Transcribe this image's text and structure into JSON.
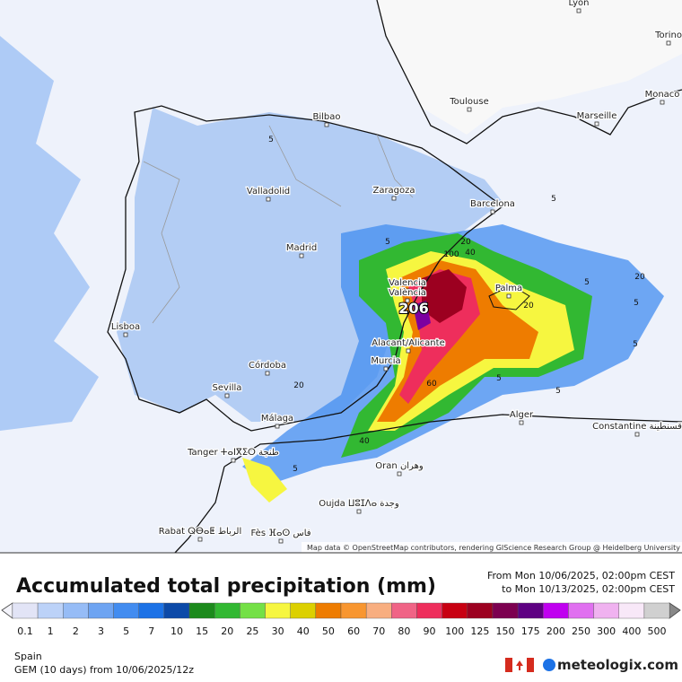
{
  "map": {
    "cities": [
      "Lyon",
      "Torino",
      "Monaco",
      "Toulouse",
      "Marseille",
      "Bilbao",
      "Valladolid",
      "Zaragoza",
      "Barcelona",
      "Madrid",
      "Valencia",
      "València",
      "Palma",
      "Lisboa",
      "Alacant/Alicante",
      "Murcia",
      "Córdoba",
      "Sevilla",
      "Málaga",
      "Alger",
      "Constantine قسنطينة",
      "Tanger ⵜⴰⵏⴳⵉⵔ طنجة",
      "Oran وهران",
      "Oujda ⵡⵓⵊⴷⴰ وجدة",
      "Rabat ⵕⴱⴰⵟ الرباط",
      "Fès ⴼⴰⵙ فاس"
    ],
    "contour_labels": [
      "5",
      "5",
      "20",
      "100",
      "40",
      "5",
      "20",
      "5",
      "20",
      "5",
      "60",
      "40",
      "5",
      "5",
      "20",
      "5",
      "5"
    ],
    "max_value": "206",
    "attribution": "Map data © OpenStreetMap contributors, rendering GIScience Research Group @ Heidelberg University"
  },
  "legend": {
    "title": "Accumulated total precipitation (mm)",
    "from": "From Mon 10/06/2025, 02:00pm CEST",
    "to": "to Mon 10/13/2025, 02:00pm CEST",
    "scale": [
      {
        "label": "0.1",
        "color": "#e2e4f6"
      },
      {
        "label": "1",
        "color": "#bcd2f8"
      },
      {
        "label": "2",
        "color": "#96bcf6"
      },
      {
        "label": "3",
        "color": "#6ea4f2"
      },
      {
        "label": "5",
        "color": "#428cf0"
      },
      {
        "label": "7",
        "color": "#1c72e6"
      },
      {
        "label": "10",
        "color": "#0c4aa8"
      },
      {
        "label": "15",
        "color": "#1c8a1c"
      },
      {
        "label": "20",
        "color": "#32b832"
      },
      {
        "label": "25",
        "color": "#74e046"
      },
      {
        "label": "30",
        "color": "#f6f640"
      },
      {
        "label": "40",
        "color": "#dcd000"
      },
      {
        "label": "50",
        "color": "#ee7c00"
      },
      {
        "label": "60",
        "color": "#f89630"
      },
      {
        "label": "70",
        "color": "#f8ae80"
      },
      {
        "label": "80",
        "color": "#f06486"
      },
      {
        "label": "90",
        "color": "#ee2e5c"
      },
      {
        "label": "100",
        "color": "#c80012"
      },
      {
        "label": "125",
        "color": "#9c0020"
      },
      {
        "label": "150",
        "color": "#7c0050"
      },
      {
        "label": "175",
        "color": "#5e0082"
      },
      {
        "label": "200",
        "color": "#c000f0"
      },
      {
        "label": "250",
        "color": "#e070f0"
      },
      {
        "label": "300",
        "color": "#f0b2f0"
      },
      {
        "label": "400",
        "color": "#f8e8f8"
      },
      {
        "label": "500",
        "color": "#d0d0d0"
      }
    ]
  },
  "footer": {
    "region": "Spain",
    "model": "GEM (10 days)  from  10/06/2025/12z",
    "brand": "meteologix.com"
  }
}
